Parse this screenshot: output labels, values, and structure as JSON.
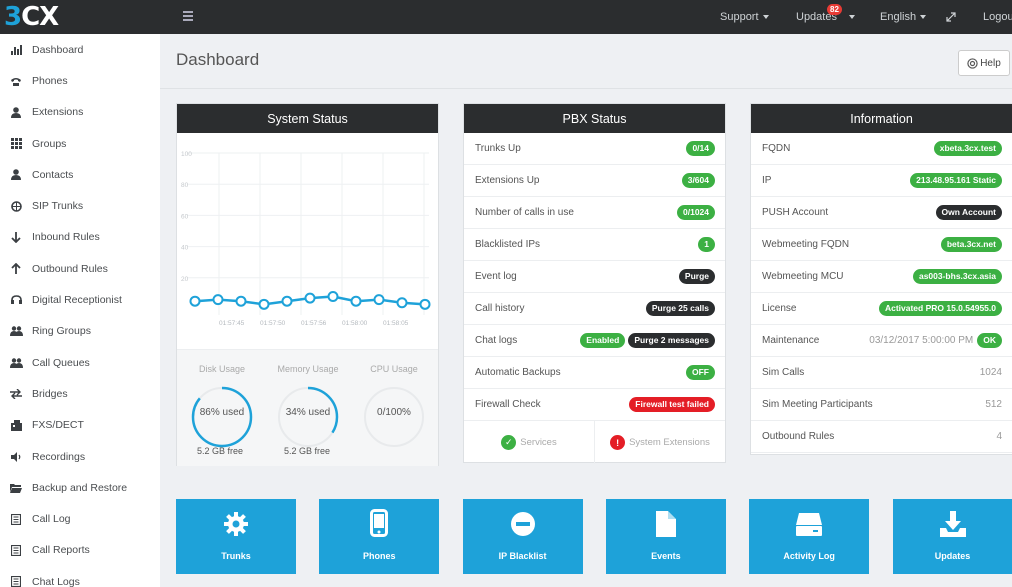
{
  "logo": {
    "prefix": "3",
    "suffix": "CX"
  },
  "topnav": {
    "support": "Support",
    "updates": "Updates",
    "updates_count": "82",
    "language": "English",
    "logout": "Logout"
  },
  "sidebar": {
    "items": [
      {
        "label": "Dashboard",
        "icon": "bar-chart-icon"
      },
      {
        "label": "Phones",
        "icon": "phone-icon"
      },
      {
        "label": "Extensions",
        "icon": "user-icon"
      },
      {
        "label": "Groups",
        "icon": "grid-icon"
      },
      {
        "label": "Contacts",
        "icon": "user-icon"
      },
      {
        "label": "SIP Trunks",
        "icon": "globe-icon"
      },
      {
        "label": "Inbound Rules",
        "icon": "arrow-down-icon"
      },
      {
        "label": "Outbound Rules",
        "icon": "arrow-up-icon"
      },
      {
        "label": "Digital Receptionist",
        "icon": "headset-icon"
      },
      {
        "label": "Ring Groups",
        "icon": "users-icon"
      },
      {
        "label": "Call Queues",
        "icon": "users-icon"
      },
      {
        "label": "Bridges",
        "icon": "exchange-icon"
      },
      {
        "label": "FXS/DECT",
        "icon": "fax-icon"
      },
      {
        "label": "Recordings",
        "icon": "volume-icon"
      },
      {
        "label": "Backup and Restore",
        "icon": "folder-icon"
      },
      {
        "label": "Call Log",
        "icon": "list-icon"
      },
      {
        "label": "Call Reports",
        "icon": "list-icon"
      },
      {
        "label": "Chat Logs",
        "icon": "list-icon"
      }
    ]
  },
  "page": {
    "title": "Dashboard",
    "help": "Help"
  },
  "system_status": {
    "title": "System Status",
    "disk_label": "Disk Usage",
    "memory_label": "Memory Usage",
    "cpu_label": "CPU Usage",
    "disk_value": "86% used",
    "memory_value": "34% used",
    "cpu_value": "0/100%",
    "disk_free": "5.2 GB free",
    "memory_free": "5.2 GB free",
    "disk_fraction": 0.86,
    "memory_fraction": 0.34,
    "cpu_fraction": 0
  },
  "chart_data": {
    "type": "line",
    "x": [
      "01:57:40",
      "01:57:45",
      "01:57:50",
      "01:57:52",
      "01:57:54",
      "01:57:56",
      "01:57:58",
      "01:58:00",
      "01:58:02",
      "01:58:04",
      "01:58:06"
    ],
    "xticks": [
      "01:57:45",
      "01:57:50",
      "01:57:56",
      "01:58:00",
      "01:58:05"
    ],
    "values": [
      5,
      6,
      5,
      3,
      5,
      7,
      8,
      5,
      6,
      4,
      3
    ],
    "yticks": [
      20,
      40,
      60,
      80,
      100
    ],
    "ylim": [
      0,
      100
    ],
    "title": "",
    "xlabel": "",
    "ylabel": ""
  },
  "pbx_status": {
    "title": "PBX Status",
    "rows": [
      {
        "label": "Trunks Up",
        "pills": [
          {
            "text": "0/14",
            "color": "green"
          }
        ]
      },
      {
        "label": "Extensions Up",
        "pills": [
          {
            "text": "3/604",
            "color": "green"
          }
        ]
      },
      {
        "label": "Number of calls in use",
        "pills": [
          {
            "text": "0/1024",
            "color": "green"
          }
        ]
      },
      {
        "label": "Blacklisted IPs",
        "pills": [
          {
            "text": "1",
            "color": "green"
          }
        ]
      },
      {
        "label": "Event log",
        "pills": [
          {
            "text": "Purge",
            "color": "dark"
          }
        ]
      },
      {
        "label": "Call history",
        "pills": [
          {
            "text": "Purge 25 calls",
            "color": "dark"
          }
        ]
      },
      {
        "label": "Chat logs",
        "pills": [
          {
            "text": "Enabled",
            "color": "green"
          },
          {
            "text": "Purge 2 messages",
            "color": "dark"
          }
        ]
      },
      {
        "label": "Automatic Backups",
        "pills": [
          {
            "text": "OFF",
            "color": "green"
          }
        ]
      },
      {
        "label": "Firewall Check",
        "pills": [
          {
            "text": "Firewall test failed",
            "color": "red"
          }
        ]
      }
    ],
    "services": "Services",
    "system_extensions": "System Extensions"
  },
  "information": {
    "title": "Information",
    "rows": [
      {
        "label": "FQDN",
        "pill": "xbeta.3cx.test",
        "color": "green"
      },
      {
        "label": "IP",
        "pill": "213.48.95.161 Static",
        "color": "green"
      },
      {
        "label": "PUSH Account",
        "pill": "Own Account",
        "color": "dark"
      },
      {
        "label": "Webmeeting FQDN",
        "pill": "beta.3cx.net",
        "color": "green"
      },
      {
        "label": "Webmeeting MCU",
        "pill": "as003-bhs.3cx.asia",
        "color": "green"
      },
      {
        "label": "License",
        "pill": "Activated PRO 15.0.54955.0",
        "color": "green"
      },
      {
        "label": "Maintenance",
        "text": "03/12/2017 5:00:00 PM",
        "pill": "OK",
        "color": "green"
      },
      {
        "label": "Sim Calls",
        "text": "1024"
      },
      {
        "label": "Sim Meeting Participants",
        "text": "512"
      },
      {
        "label": "Outbound Rules",
        "text": "4"
      }
    ]
  },
  "tiles": [
    {
      "label": "Trunks",
      "icon": "gear-icon"
    },
    {
      "label": "Phones",
      "icon": "mobile-icon"
    },
    {
      "label": "IP Blacklist",
      "icon": "minus-circle-icon"
    },
    {
      "label": "Events",
      "icon": "file-icon"
    },
    {
      "label": "Activity Log",
      "icon": "hdd-icon"
    },
    {
      "label": "Updates",
      "icon": "download-icon"
    }
  ],
  "colors": {
    "brand": "#1ea2d9",
    "green": "#3cb043",
    "red": "#e41e26",
    "dark": "#2b2d2f"
  }
}
